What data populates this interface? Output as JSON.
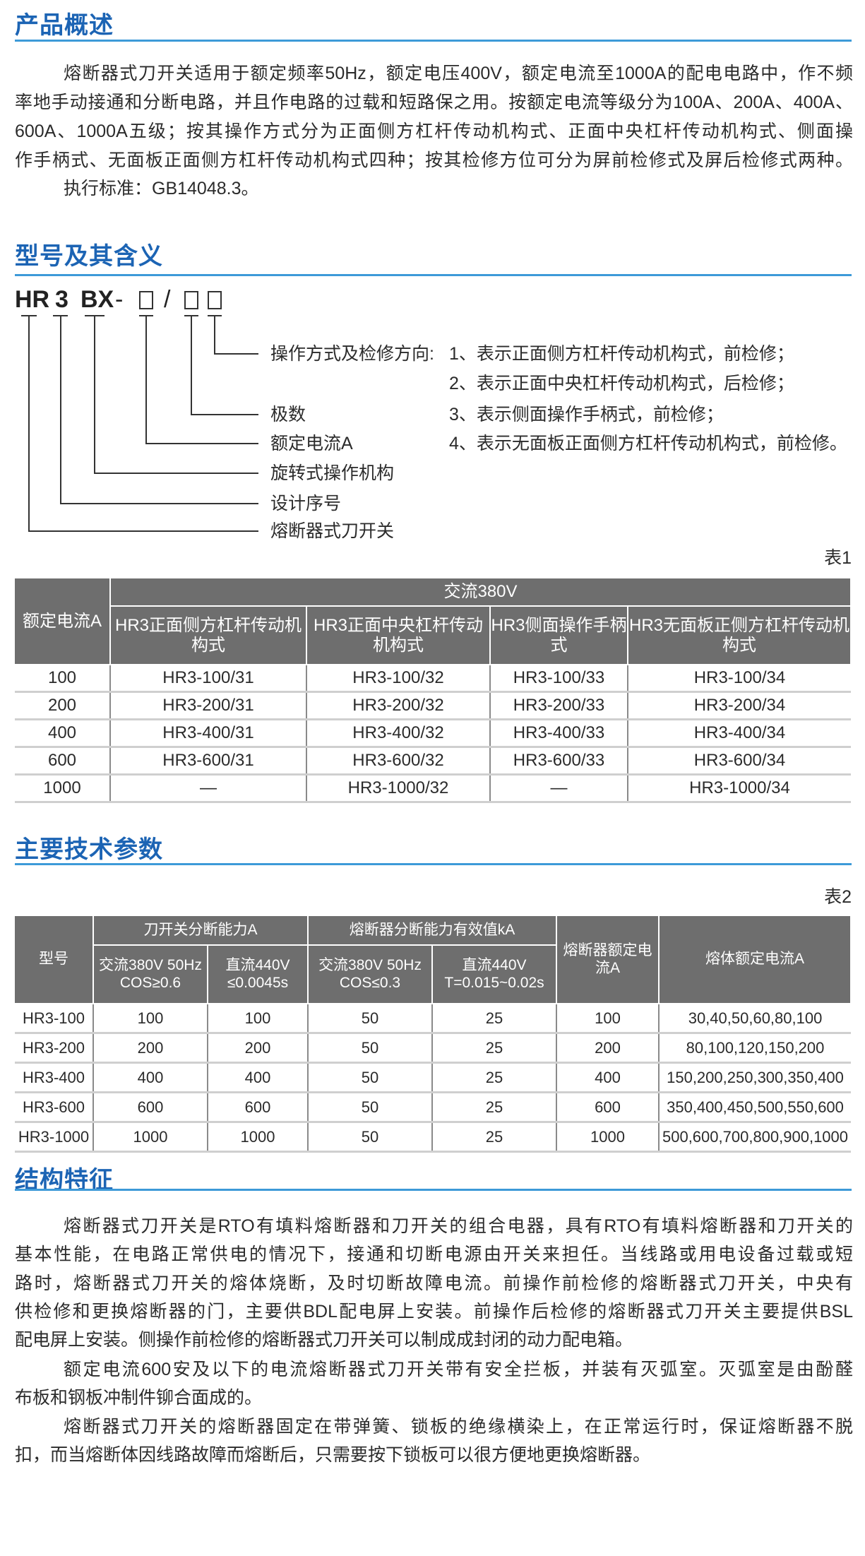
{
  "colors": {
    "title": "#1c64b4",
    "rule": "#3d9ad8",
    "table_header": "#6e6e6e"
  },
  "overview": {
    "title": "产品概述",
    "para1_lines": [
      "熔断器式刀开关适用于额定频率50Hz，额定电压400V，额定电流至1000A的配电电路中，作不频",
      "率地手动接通和分断电路，并且作电路的过载和短路保之用。按额定电流等级分为100A、200A、400A、",
      "600A、1000A五级；按其操作方式分为正面侧方杠杆传动机构式、正面中央杠杆传动机构式、侧面操",
      "作手柄式、无面板正面侧方杠杆传动机构式四种；按其检修方位可分为屏前检修式及屏后检修式两种。"
    ],
    "standard": "执行标准：GB14048.3。"
  },
  "model": {
    "title": "型号及其含义",
    "code": {
      "p1": "HR",
      "p2": "3",
      "p3": "BX",
      "dash": "-",
      "slash": "/"
    },
    "labels": [
      "操作方式及检修方向:",
      "极数",
      "额定电流A",
      "旋转式操作机构",
      "设计序号",
      "熔断器式刀开关"
    ],
    "options": [
      "1、表示正面侧方杠杆传动机构式，前检修；",
      "2、表示正面中央杠杆传动机构式，后检修；",
      "3、表示侧面操作手柄式，前检修；",
      "4、表示无面板正面侧方杠杆传动机构式，前检修。"
    ]
  },
  "table1": {
    "tag": "表1",
    "header_rated": "额定电流A",
    "header_group": "交流380V",
    "columns": [
      "HR3正面侧方杠杆传动机构式",
      "HR3正面中央杠杆传动机构式",
      "HR3侧面操作手柄式",
      "HR3无面板正侧方杠杆传动机构式"
    ],
    "rows": [
      [
        "100",
        "HR3-100/31",
        "HR3-100/32",
        "HR3-100/33",
        "HR3-100/34"
      ],
      [
        "200",
        "HR3-200/31",
        "HR3-200/32",
        "HR3-200/33",
        "HR3-200/34"
      ],
      [
        "400",
        "HR3-400/31",
        "HR3-400/32",
        "HR3-400/33",
        "HR3-400/34"
      ],
      [
        "600",
        "HR3-600/31",
        "HR3-600/32",
        "HR3-600/33",
        "HR3-600/34"
      ],
      [
        "1000",
        "—",
        "HR3-1000/32",
        "—",
        "HR3-1000/34"
      ]
    ]
  },
  "tech": {
    "title": "主要技术参数",
    "tag": "表2",
    "h_model": "型号",
    "h_switch": "刀开关分断能力A",
    "h_fuse": "熔断器分断能力有效值kA",
    "h_fuse_rated": "熔断器额定电流A",
    "h_melt_rated": "熔体额定电流A",
    "sub": [
      "交流380V 50Hz COS≥0.6",
      "直流440V ≤0.0045s",
      "交流380V 50Hz COS≤0.3",
      "直流440V T=0.015~0.02s"
    ],
    "rows": [
      [
        "HR3-100",
        "100",
        "100",
        "50",
        "25",
        "100",
        "30,40,50,60,80,100"
      ],
      [
        "HR3-200",
        "200",
        "200",
        "50",
        "25",
        "200",
        "80,100,120,150,200"
      ],
      [
        "HR3-400",
        "400",
        "400",
        "50",
        "25",
        "400",
        "150,200,250,300,350,400"
      ],
      [
        "HR3-600",
        "600",
        "600",
        "50",
        "25",
        "600",
        "350,400,450,500,550,600"
      ],
      [
        "HR3-1000",
        "1000",
        "1000",
        "50",
        "25",
        "1000",
        "500,600,700,800,900,1000"
      ]
    ]
  },
  "structure": {
    "title": "结构特征",
    "p1_lines": [
      "熔断器式刀开关是RTO有填料熔断器和刀开关的组合电器，具有RTO有填料熔断器和刀开关的",
      "基本性能，在电路正常供电的情况下，接通和切断电源由开关来担任。当线路或用电设备过载或短",
      "路时，熔断器式刀开关的熔体烧断，及时切断故障电流。前操作前检修的熔断器式刀开关，中央有",
      "供检修和更换熔断器的门，主要供BDL配电屏上安装。前操作后检修的熔断器式刀开关主要提供BSL",
      "配电屏上安装。侧操作前检修的熔断器式刀开关可以制成成封闭的动力配电箱。"
    ],
    "p2_lines": [
      "额定电流600安及以下的电流熔断器式刀开关带有安全拦板，并装有灭弧室。灭弧室是由酚醛",
      "布板和钢板冲制件铆合面成的。"
    ],
    "p3_lines": [
      "熔断器式刀开关的熔断器固定在带弹簧、锁板的绝缘横染上，在正常运行时，保证熔断器不脱",
      "扣，而当熔断体因线路故障而熔断后，只需要按下锁板可以很方便地更换熔断器。"
    ]
  }
}
